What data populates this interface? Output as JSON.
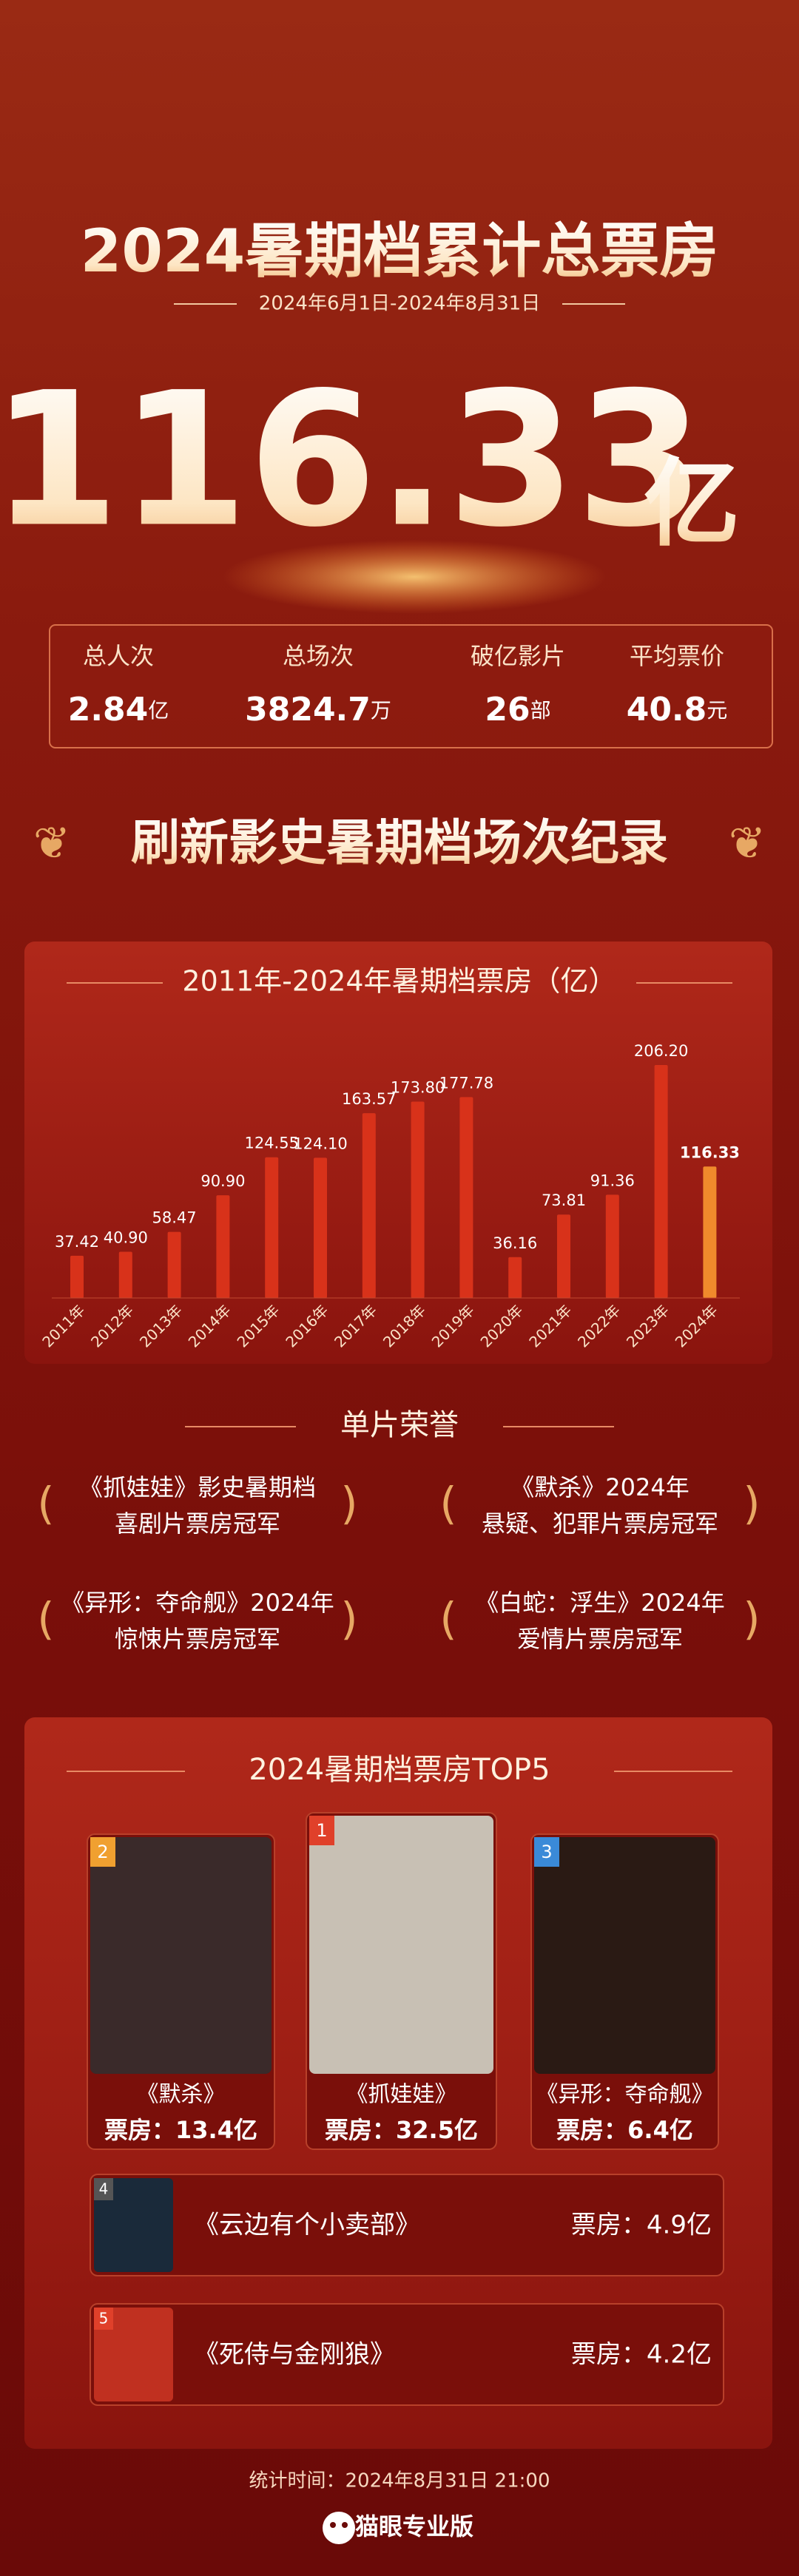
{
  "header": {
    "title": "2024暑期档累计总票房",
    "date_range": "2024年6月1日-2024年8月31日",
    "total": "116.33",
    "total_unit": "亿"
  },
  "stats": [
    {
      "label": "总人次",
      "value": "2.84",
      "unit": "亿"
    },
    {
      "label": "总场次",
      "value": "3824.7",
      "unit": "万"
    },
    {
      "label": "破亿影片",
      "value": "26",
      "unit": "部"
    },
    {
      "label": "平均票价",
      "value": "40.8",
      "unit": "元"
    }
  ],
  "banner": "刷新影史暑期档场次纪录",
  "chart_data": {
    "type": "bar",
    "title": "2011年-2024年暑期档票房（亿）",
    "categories": [
      "2011年",
      "2012年",
      "2013年",
      "2014年",
      "2015年",
      "2016年",
      "2017年",
      "2018年",
      "2019年",
      "2020年",
      "2021年",
      "2022年",
      "2023年",
      "2024年"
    ],
    "values": [
      37.42,
      40.9,
      58.47,
      90.9,
      124.55,
      124.1,
      163.57,
      173.8,
      177.78,
      36.16,
      73.81,
      91.36,
      206.2,
      116.33
    ],
    "value_labels": [
      "37.42",
      "40.90",
      "58.47",
      "90.90",
      "124.55",
      "124.10",
      "163.57",
      "173.80",
      "177.78",
      "36.16",
      "73.81",
      "91.36",
      "206.20",
      "116.33"
    ],
    "colors": [
      "#d8321a",
      "#d8321a",
      "#d8321a",
      "#d8321a",
      "#d8321a",
      "#d8321a",
      "#d8321a",
      "#d8321a",
      "#d8321a",
      "#d8321a",
      "#d8321a",
      "#d8321a",
      "#d8321a",
      "#f08a2c"
    ]
  },
  "honors": {
    "title": "单片荣誉",
    "items": [
      [
        "《抓娃娃》影史暑期档",
        "喜剧片票房冠军"
      ],
      [
        "《默杀》2024年",
        "悬疑、犯罪片票房冠军"
      ],
      [
        "《异形：夺命舰》2024年",
        "惊悚片票房冠军"
      ],
      [
        "《白蛇：浮生》2024年",
        "爱情片票房冠军"
      ]
    ]
  },
  "top5": {
    "title": "2024暑期档票房TOP5",
    "films": [
      {
        "rank": "1",
        "name": "《抓娃娃》",
        "box_office": "票房：32.5亿"
      },
      {
        "rank": "2",
        "name": "《默杀》",
        "box_office": "票房：13.4亿"
      },
      {
        "rank": "3",
        "name": "《异形：夺命舰》",
        "box_office": "票房：6.4亿"
      },
      {
        "rank": "4",
        "name": "《云边有个小卖部》",
        "box_office": "票房：4.9亿"
      },
      {
        "rank": "5",
        "name": "《死侍与金刚狼》",
        "box_office": "票房：4.2亿"
      }
    ]
  },
  "footer": {
    "stat_time": "统计时间：2024年8月31日 21:00",
    "brand": "猫眼专业版"
  }
}
